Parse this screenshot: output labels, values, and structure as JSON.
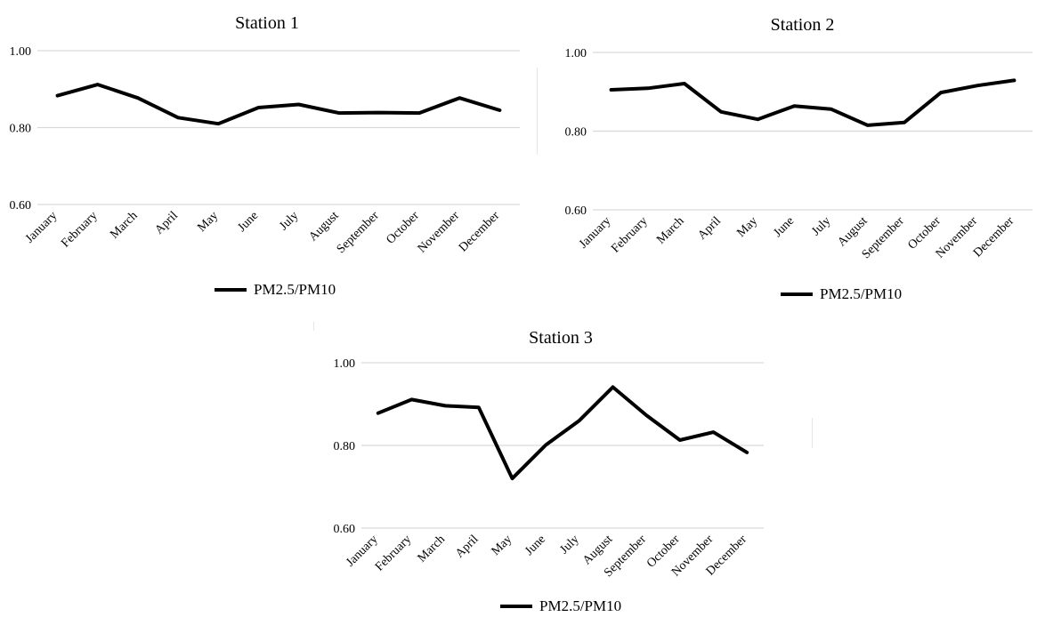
{
  "page": {
    "legend_label": "PM2.5/PM10"
  },
  "colors": {
    "line": "#000000",
    "grid": "#d9d9d9"
  },
  "chart_data": [
    {
      "type": "line",
      "title": "Station 1",
      "categories": [
        "January",
        "February",
        "March",
        "April",
        "May",
        "June",
        "July",
        "August",
        "September",
        "October",
        "November",
        "December"
      ],
      "series": [
        {
          "name": "PM2.5/PM10",
          "values": [
            0.883,
            0.912,
            0.877,
            0.826,
            0.81,
            0.852,
            0.86,
            0.838,
            0.839,
            0.838,
            0.877,
            0.845
          ]
        }
      ],
      "yticks": [
        "0.60",
        "0.80",
        "1.00"
      ],
      "ylim": [
        0.6,
        1.0
      ],
      "grid": true,
      "legend_position": "bottom"
    },
    {
      "type": "line",
      "title": "Station 2",
      "categories": [
        "January",
        "February",
        "March",
        "April",
        "May",
        "June",
        "July",
        "August",
        "September",
        "October",
        "November",
        "December"
      ],
      "series": [
        {
          "name": "PM2.5/PM10",
          "values": [
            0.905,
            0.909,
            0.921,
            0.849,
            0.83,
            0.864,
            0.856,
            0.815,
            0.822,
            0.898,
            0.916,
            0.929
          ]
        }
      ],
      "yticks": [
        "0.60",
        "0.80",
        "1.00"
      ],
      "ylim": [
        0.6,
        1.0
      ],
      "grid": true,
      "legend_position": "bottom"
    },
    {
      "type": "line",
      "title": "Station 3",
      "categories": [
        "January",
        "February",
        "March",
        "April",
        "May",
        "June",
        "July",
        "August",
        "September",
        "October",
        "November",
        "December"
      ],
      "series": [
        {
          "name": "PM2.5/PM10",
          "values": [
            0.878,
            0.911,
            0.896,
            0.892,
            0.72,
            0.801,
            0.86,
            0.941,
            0.873,
            0.813,
            0.832,
            0.783
          ]
        }
      ],
      "yticks": [
        "0.60",
        "0.80",
        "1.00"
      ],
      "ylim": [
        0.6,
        1.0
      ],
      "grid": true,
      "legend_position": "bottom"
    }
  ]
}
